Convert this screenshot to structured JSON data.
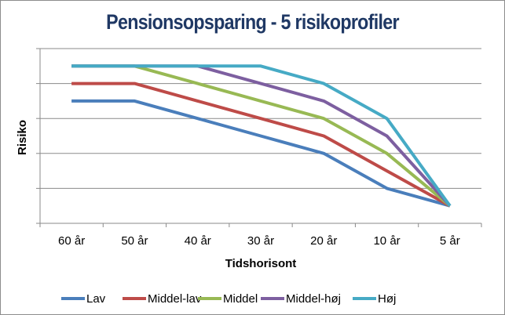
{
  "chart_data": {
    "type": "line",
    "title": "Pensionsopsparing - 5 risikoprofiler",
    "xlabel": "Tidshorisont",
    "ylabel": "Risiko",
    "categories": [
      "60 år",
      "50 år",
      "40 år",
      "30 år",
      "20 år",
      "10 år",
      "5 år"
    ],
    "ylim": [
      0,
      5
    ],
    "y_ticks_labeled": false,
    "grid": true,
    "legend": "bottom",
    "series": [
      {
        "name": "Lav",
        "color": "#4a7ebb",
        "values": [
          3.5,
          3.5,
          3.0,
          2.5,
          2.0,
          1.0,
          0.5
        ]
      },
      {
        "name": "Middel-lav",
        "color": "#be4b48",
        "values": [
          4.0,
          4.0,
          3.5,
          3.0,
          2.5,
          1.5,
          0.5
        ]
      },
      {
        "name": "Middel",
        "color": "#98b954",
        "values": [
          4.5,
          4.5,
          4.0,
          3.5,
          3.0,
          2.0,
          0.5
        ]
      },
      {
        "name": "Middel-høj",
        "color": "#7d5fa0",
        "values": [
          4.5,
          4.5,
          4.5,
          4.0,
          3.5,
          2.5,
          0.5
        ]
      },
      {
        "name": "Høj",
        "color": "#46aac5",
        "values": [
          4.5,
          4.5,
          4.5,
          4.5,
          4.0,
          3.0,
          0.5
        ]
      }
    ]
  }
}
